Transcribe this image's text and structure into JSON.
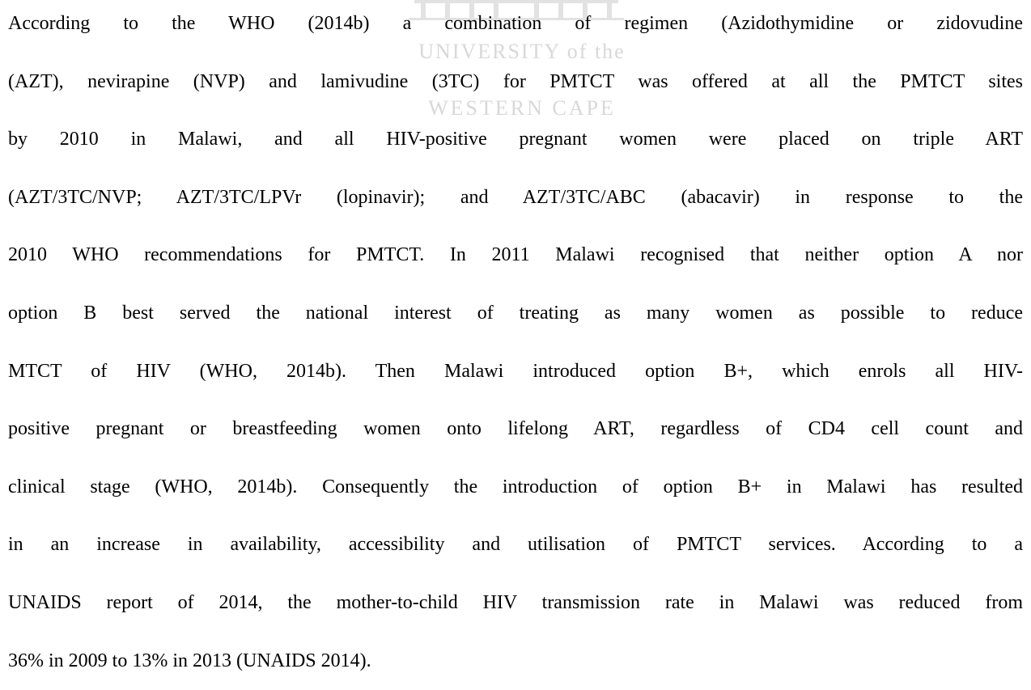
{
  "watermark": {
    "line1": "UNIVERSITY of the",
    "line2": "WESTERN CAPE"
  },
  "paragraph": {
    "lines": [
      "According to the WHO (2014b) a combination of regimen (Azidothymidine or zidovudine",
      "(AZT), nevirapine (NVP) and lamivudine (3TC) for PMTCT was offered at all the PMTCT sites",
      "by 2010 in Malawi, and all HIV-positive pregnant women were placed on triple ART",
      "(AZT/3TC/NVP; AZT/3TC/LPVr (lopinavir); and AZT/3TC/ABC (abacavir) in response to the",
      "2010 WHO recommendations for PMTCT. In 2011 Malawi recognised that neither option A nor",
      "option B best served the national interest of treating as many women as possible to reduce",
      "MTCT of HIV (WHO, 2014b). Then Malawi introduced option B+, which enrols all HIV-",
      "positive pregnant or breastfeeding women onto lifelong ART, regardless of CD4 cell count and",
      "clinical stage (WHO, 2014b). Consequently the introduction of option B+ in Malawi has resulted",
      "in an increase in availability, accessibility and utilisation of PMTCT services. According to a",
      "UNAIDS report of 2014, the mother-to-child HIV transmission rate in Malawi was reduced from",
      "36% in 2009 to 13% in 2013 (UNAIDS 2014)."
    ]
  }
}
